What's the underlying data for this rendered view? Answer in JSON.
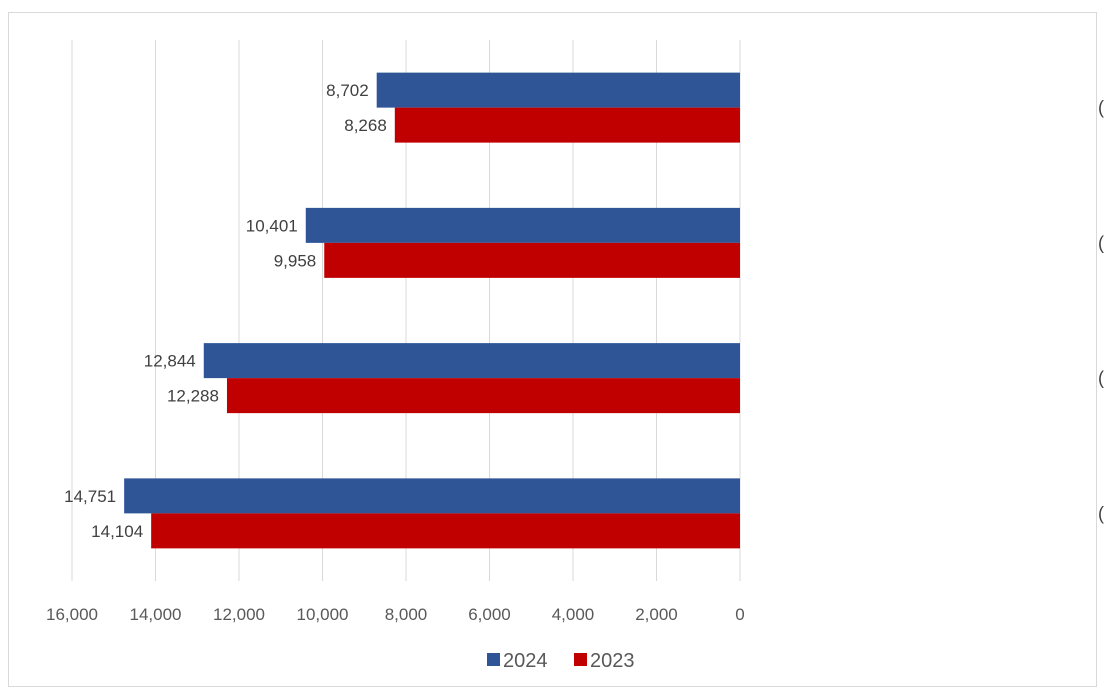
{
  "chart_data": {
    "type": "bar",
    "orientation": "horizontal",
    "x_axis_reversed": true,
    "categories": [
      "הכנסה חציונית לחודש בשנה (ש\"ח)",
      "הכנסה חציונית לחודש עבודה (ש\"ח)",
      "הכנסה ממוצעת לחודש בשנה (ש\"ח)",
      "הכנסה ממוצעת לחודש עבודה (ש\"ח)"
    ],
    "series": [
      {
        "name": "2024",
        "color": "#2f5597",
        "values": [
          8702,
          10401,
          12844,
          14751
        ],
        "labels": [
          "8,702",
          "10,401",
          "12,844",
          "14,751"
        ]
      },
      {
        "name": "2023",
        "color": "#c00000",
        "values": [
          8268,
          9958,
          12288,
          14104
        ],
        "labels": [
          "8,268",
          "9,958",
          "12,288",
          "14,104"
        ]
      }
    ],
    "xlim": [
      0,
      16000
    ],
    "x_ticks": [
      0,
      2000,
      4000,
      6000,
      8000,
      10000,
      12000,
      14000,
      16000
    ],
    "x_tick_labels": [
      "0",
      "2,000",
      "4,000",
      "6,000",
      "8,000",
      "10,000",
      "12,000",
      "14,000",
      "16,000"
    ],
    "grid": true,
    "legend_position": "bottom"
  }
}
